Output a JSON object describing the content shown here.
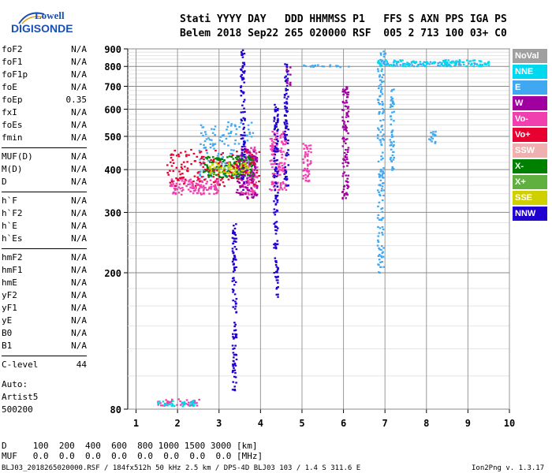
{
  "logo": {
    "line1": "Lowell",
    "line2": "DIGISONDE"
  },
  "header": {
    "line1": "Stati YYYY DAY   DDD HHMMSS P1   FFS S AXN PPS IGA PS",
    "line2": "Belem 2018 Sep22 265 020000 RSF  005 2 713 100 03+ C0"
  },
  "params": [
    [
      {
        "name": "foF2",
        "value": "N/A"
      },
      {
        "name": "foF1",
        "value": "N/A"
      },
      {
        "name": "foF1p",
        "value": "N/A"
      },
      {
        "name": "foE",
        "value": "N/A"
      },
      {
        "name": "foEp",
        "value": "0.35"
      },
      {
        "name": "fxI",
        "value": "N/A"
      },
      {
        "name": "foEs",
        "value": "N/A"
      },
      {
        "name": "fmin",
        "value": "N/A"
      }
    ],
    [
      {
        "name": "MUF(D)",
        "value": "N/A"
      },
      {
        "name": "M(D)",
        "value": "N/A"
      },
      {
        "name": "D",
        "value": "N/A"
      }
    ],
    [
      {
        "name": "h`F",
        "value": "N/A"
      },
      {
        "name": "h`F2",
        "value": "N/A"
      },
      {
        "name": "h`E",
        "value": "N/A"
      },
      {
        "name": "h`Es",
        "value": "N/A"
      }
    ],
    [
      {
        "name": "hmF2",
        "value": "N/A"
      },
      {
        "name": "hmF1",
        "value": "N/A"
      },
      {
        "name": "hmE",
        "value": "N/A"
      },
      {
        "name": "yF2",
        "value": "N/A"
      },
      {
        "name": "yF1",
        "value": "N/A"
      },
      {
        "name": "yE",
        "value": "N/A"
      },
      {
        "name": "B0",
        "value": "N/A"
      },
      {
        "name": "B1",
        "value": "N/A"
      }
    ],
    [
      {
        "name": "C-level",
        "value": "44"
      }
    ]
  ],
  "auto": {
    "line1": "Auto:",
    "line2": "Artist5",
    "line3": "500200"
  },
  "footer": {
    "d_row": "D     100  200  400  600  800 1000 1500 3000 [km]",
    "muf_row": "MUF   0.0  0.0  0.0  0.0  0.0  0.0  0.0  0.0 [MHz]",
    "info": "BLJ03_2018265020000.RSF / 184fx512h 50 kHz 2.5 km / DPS-4D BLJ03 103 / 1.4 S 311.6 E",
    "version": "Ion2Png v. 1.3.17"
  },
  "legend": [
    {
      "label": "NoVal",
      "color": "#a0a0a0"
    },
    {
      "label": "NNE",
      "color": "#00d8f0"
    },
    {
      "label": "E",
      "color": "#40a8f0"
    },
    {
      "label": "W",
      "color": "#a000a0"
    },
    {
      "label": "Vo-",
      "color": "#f040b0"
    },
    {
      "label": "Vo+",
      "color": "#e80030"
    },
    {
      "label": "SSW",
      "color": "#f0b0b0"
    },
    {
      "label": "X-",
      "color": "#008000"
    },
    {
      "label": "X+",
      "color": "#60b040"
    },
    {
      "label": "SSE",
      "color": "#d0d000"
    },
    {
      "label": "NNW",
      "color": "#2000d0"
    }
  ],
  "chart_data": {
    "type": "scatter",
    "title": "",
    "xlabel": "",
    "ylabel": "",
    "xlim": [
      0.8,
      10
    ],
    "ylim": [
      80,
      900
    ],
    "yscale": "log",
    "xticks": [
      1,
      2,
      3,
      4,
      5,
      6,
      7,
      8,
      9,
      10
    ],
    "yticks": [
      80,
      200,
      300,
      400,
      500,
      600,
      700,
      800,
      900
    ],
    "grid": true,
    "legend_position": "right",
    "clusters": [
      {
        "label": "E",
        "x": [
          6.85,
          7.0
        ],
        "y": [
          800,
          890
        ]
      },
      {
        "label": "E",
        "x": [
          7.0,
          9.2
        ],
        "y": [
          805,
          830
        ]
      },
      {
        "label": "E",
        "x": [
          4.9,
          6.2
        ],
        "y": [
          800,
          812
        ]
      },
      {
        "label": "E",
        "x": [
          6.8,
          6.95
        ],
        "y": [
          200,
          800
        ]
      },
      {
        "label": "E",
        "x": [
          7.1,
          7.2
        ],
        "y": [
          400,
          690
        ]
      },
      {
        "label": "E",
        "x": [
          8.0,
          8.2
        ],
        "y": [
          480,
          520
        ]
      },
      {
        "label": "E",
        "x": [
          2.5,
          3.8
        ],
        "y": [
          380,
          560
        ]
      },
      {
        "label": "Vo-",
        "x": [
          1.8,
          3.0
        ],
        "y": [
          340,
          380
        ]
      },
      {
        "label": "Vo-",
        "x": [
          3.5,
          3.9
        ],
        "y": [
          340,
          470
        ]
      },
      {
        "label": "Vo-",
        "x": [
          4.2,
          4.6
        ],
        "y": [
          350,
          520
        ]
      },
      {
        "label": "Vo-",
        "x": [
          5.0,
          5.2
        ],
        "y": [
          370,
          480
        ]
      },
      {
        "label": "W",
        "x": [
          3.4,
          3.9
        ],
        "y": [
          330,
          460
        ]
      },
      {
        "label": "W",
        "x": [
          5.95,
          6.1
        ],
        "y": [
          330,
          700
        ]
      },
      {
        "label": "W",
        "x": [
          4.6,
          4.7
        ],
        "y": [
          710,
          800
        ]
      },
      {
        "label": "NNW",
        "x": [
          3.5,
          3.6
        ],
        "y": [
          350,
          900
        ]
      },
      {
        "label": "NNW",
        "x": [
          4.3,
          4.4
        ],
        "y": [
          170,
          630
        ]
      },
      {
        "label": "NNW",
        "x": [
          4.55,
          4.65
        ],
        "y": [
          360,
          820
        ]
      },
      {
        "label": "NNW",
        "x": [
          3.3,
          3.4
        ],
        "y": [
          90,
          280
        ]
      },
      {
        "label": "X-",
        "x": [
          2.6,
          3.8
        ],
        "y": [
          380,
          440
        ]
      },
      {
        "label": "SSE",
        "x": [
          2.7,
          3.7
        ],
        "y": [
          390,
          420
        ]
      },
      {
        "label": "Vo+",
        "x": [
          1.7,
          4.0
        ],
        "y": [
          360,
          460
        ]
      },
      {
        "label": "NNE",
        "x": [
          6.8,
          9.5
        ],
        "y": [
          805,
          840
        ]
      },
      {
        "label": "Vo-",
        "x": [
          1.5,
          2.5
        ],
        "y": [
          82,
          86
        ]
      },
      {
        "label": "NNE",
        "x": [
          1.5,
          2.4
        ],
        "y": [
          82,
          85
        ]
      }
    ]
  }
}
